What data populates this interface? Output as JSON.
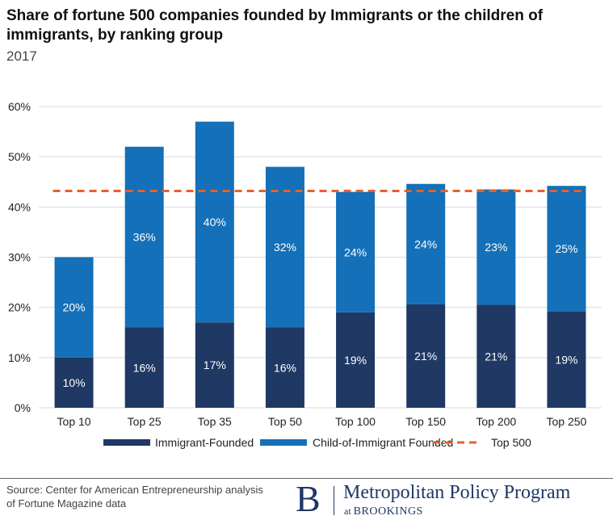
{
  "header": {
    "title": "Share of fortune 500 companies founded by Immigrants or the children of immigrants, by ranking group",
    "subtitle": "2017"
  },
  "footer": {
    "source": "Source: Center for American Entrepreneurship analysis of Fortune Magazine data",
    "logo_letter": "B",
    "logo_program": "Metropolitan Policy Program",
    "logo_at": "at",
    "logo_org": "BROOKINGS"
  },
  "colors": {
    "immigrant": "#1f3864",
    "child": "#1470b8",
    "top500": "#e8602c",
    "grid": "#d9d9d9",
    "axis_text": "#222222"
  },
  "chart_data": {
    "type": "bar",
    "stacked": true,
    "title": "Share of fortune 500 companies founded by Immigrants or the children of immigrants, by ranking group",
    "subtitle": "2017",
    "categories": [
      "Top 10",
      "Top 25",
      "Top 35",
      "Top 50",
      "Top 100",
      "Top 150",
      "Top 200",
      "Top 250"
    ],
    "series": [
      {
        "name": "Immigrant-Founded",
        "values": [
          10,
          16,
          17,
          16,
          19,
          20.6,
          20.5,
          19.2
        ],
        "labels": [
          "10%",
          "16%",
          "17%",
          "16%",
          "19%",
          "21%",
          "21%",
          "19%"
        ]
      },
      {
        "name": "Child-of-Immigrant Founded",
        "values": [
          20,
          36,
          40,
          32,
          24,
          24,
          23,
          25
        ],
        "labels": [
          "20%",
          "36%",
          "40%",
          "32%",
          "24%",
          "24%",
          "23%",
          "25%"
        ]
      }
    ],
    "reference_line": {
      "name": "Top 500",
      "value": 43.2,
      "style": "dashed"
    },
    "ylim": [
      0,
      60
    ],
    "yticks": [
      0,
      10,
      20,
      30,
      40,
      50,
      60
    ],
    "ytick_labels": [
      "0%",
      "10%",
      "20%",
      "30%",
      "40%",
      "50%",
      "60%"
    ],
    "xlabel": "",
    "ylabel": "",
    "grid": true,
    "legend_position": "bottom"
  }
}
